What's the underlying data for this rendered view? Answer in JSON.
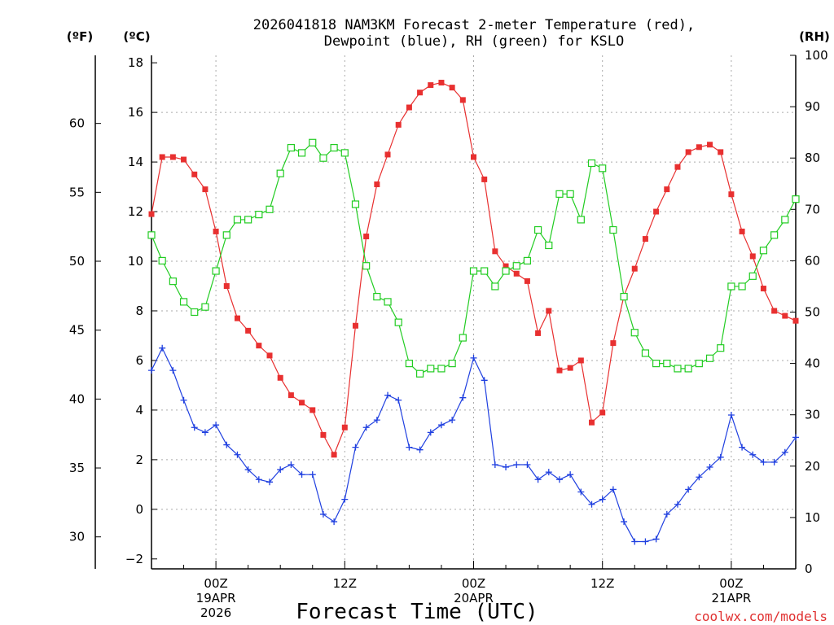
{
  "chart_data": {
    "type": "line",
    "title_line1": "2026041818 NAM3KM Forecast 2-meter Temperature (red),",
    "title_line2": "Dewpoint (blue), RH (green) for KSLO",
    "unit_f": "(ºF)",
    "unit_c": "(ºC)",
    "unit_rh": "(RH)",
    "xlabel": "Forecast Time (UTC)",
    "credit": "coolwx.com/models",
    "x_label_values": [
      6,
      18,
      30,
      42,
      54
    ],
    "x_labels": [
      {
        "line1": "00Z",
        "line2": "19APR",
        "line3": "2026"
      },
      {
        "line1": "12Z",
        "line2": "",
        "line3": ""
      },
      {
        "line1": "00Z",
        "line2": "20APR",
        "line3": ""
      },
      {
        "line1": "12Z",
        "line2": "",
        "line3": ""
      },
      {
        "line1": "00Z",
        "line2": "21APR",
        "line3": ""
      }
    ],
    "xlim": [
      0,
      60
    ],
    "ylim_c": [
      -2.4,
      18.3
    ],
    "y_c_ticks": [
      "-2",
      "0",
      "2",
      "4",
      "6",
      "8",
      "10",
      "12",
      "14",
      "16",
      "18"
    ],
    "y_f_ticks": [
      "30",
      "35",
      "40",
      "45",
      "50",
      "55",
      "60"
    ],
    "y_rh_ticks": [
      "0",
      "10",
      "20",
      "30",
      "40",
      "50",
      "60",
      "70",
      "80",
      "90",
      "100"
    ],
    "grid": true,
    "series": [
      {
        "name": "Temperature",
        "color": "#e83030",
        "marker": "filled-square",
        "axis": "c",
        "values": [
          11.9,
          14.2,
          14.2,
          14.1,
          13.5,
          12.9,
          11.2,
          9.0,
          7.7,
          7.2,
          6.6,
          6.2,
          5.3,
          4.6,
          4.3,
          4.0,
          3.0,
          2.2,
          3.3,
          7.4,
          11.0,
          13.1,
          14.3,
          15.5,
          16.2,
          16.8,
          17.1,
          17.2,
          17.0,
          16.5,
          14.2,
          13.3,
          10.4,
          9.8,
          9.5,
          9.2,
          7.1,
          8.0,
          5.6,
          5.7,
          6.0,
          3.5,
          3.9,
          6.7,
          8.6,
          9.7,
          10.9,
          12.0,
          12.9,
          13.8,
          14.4,
          14.6,
          14.7,
          14.4,
          12.7,
          11.2,
          10.2,
          8.9,
          8.0,
          7.8,
          7.6
        ]
      },
      {
        "name": "Dewpoint",
        "color": "#2040e0",
        "marker": "plus",
        "axis": "c",
        "values": [
          5.6,
          6.5,
          5.6,
          4.4,
          3.3,
          3.1,
          3.4,
          2.6,
          2.2,
          1.6,
          1.2,
          1.1,
          1.6,
          1.8,
          1.4,
          1.4,
          -0.2,
          -0.5,
          0.4,
          2.5,
          3.3,
          3.6,
          4.6,
          4.4,
          2.5,
          2.4,
          3.1,
          3.4,
          3.6,
          4.5,
          6.1,
          5.2,
          1.8,
          1.7,
          1.8,
          1.8,
          1.2,
          1.5,
          1.2,
          1.4,
          0.7,
          0.2,
          0.4,
          0.8,
          -0.5,
          -1.3,
          -1.3,
          -1.2,
          -0.2,
          0.2,
          0.8,
          1.3,
          1.7,
          2.1,
          3.8,
          2.5,
          2.2,
          1.9,
          1.9,
          2.3,
          2.9
        ]
      },
      {
        "name": "RH",
        "color": "#22cc22",
        "marker": "hollow-square",
        "axis": "rh",
        "values": [
          65,
          60,
          56,
          52,
          50,
          51,
          58,
          65,
          68,
          68,
          69,
          70,
          77,
          82,
          81,
          83,
          80,
          82,
          81,
          71,
          59,
          53,
          52,
          48,
          40,
          38,
          39,
          39,
          40,
          45,
          58,
          58,
          55,
          58,
          59,
          60,
          66,
          63,
          73,
          73,
          68,
          79,
          78,
          66,
          53,
          46,
          42,
          40,
          40,
          39,
          39,
          40,
          41,
          43,
          55,
          55,
          57,
          62,
          65,
          68,
          72
        ]
      }
    ]
  }
}
